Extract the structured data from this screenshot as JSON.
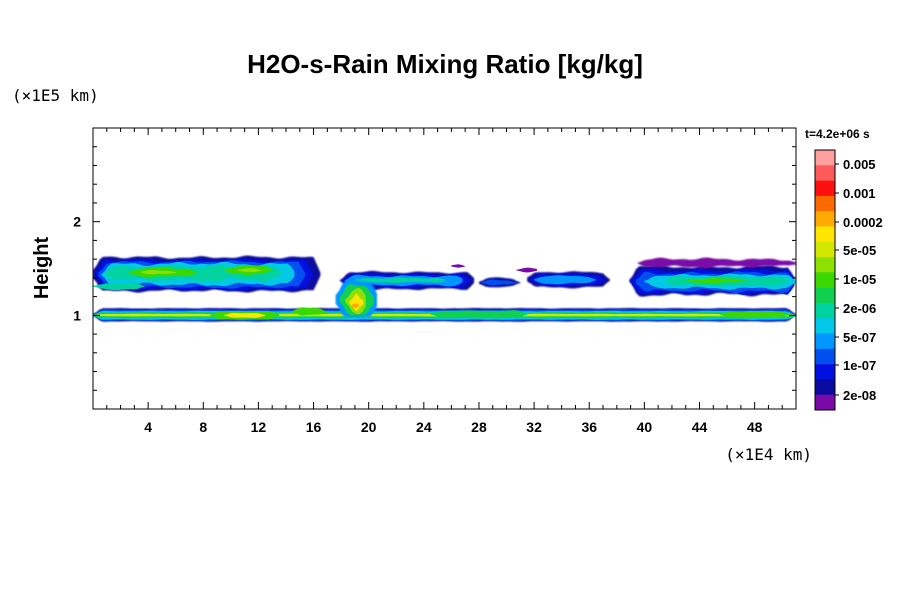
{
  "chart_data": {
    "type": "heatmap",
    "title": "H2O-s-Rain Mixing Ratio [kg/kg]",
    "xlabel": "",
    "ylabel": "Height",
    "x_unit": "(×1E4 km)",
    "y_unit": "(×1E5 km)",
    "time_label": "t=4.2e+06 s",
    "xlim": [
      0,
      51
    ],
    "ylim": [
      0,
      3
    ],
    "x_ticks": [
      4,
      8,
      12,
      16,
      20,
      24,
      28,
      32,
      36,
      40,
      44,
      48
    ],
    "y_ticks": [
      1,
      2
    ],
    "colorbar": {
      "levels": [
        "0.005",
        "0.001",
        "0.0002",
        "5e-05",
        "1e-05",
        "2e-06",
        "5e-07",
        "1e-07",
        "2e-08"
      ],
      "colors": [
        "#ff9f9f",
        "#ff5a5a",
        "#ff1010",
        "#ff6a00",
        "#ffaa00",
        "#ffe600",
        "#d2e800",
        "#8de000",
        "#3ad800",
        "#10d050",
        "#00d2a0",
        "#00c8e6",
        "#0096ff",
        "#0050f0",
        "#0010e0",
        "#0a0aa0",
        "#7a0aa8"
      ]
    },
    "bands": [
      {
        "name": "upper cloud band west",
        "x": [
          0,
          16.5
        ],
        "height": [
          1.28,
          1.62
        ],
        "peak": "1e-05"
      },
      {
        "name": "upper cloud band center",
        "x": [
          18,
          38
        ],
        "height": [
          1.3,
          1.45
        ],
        "peak": "5e-07"
      },
      {
        "name": "upper cloud band east",
        "x": [
          39,
          51
        ],
        "height": [
          1.25,
          1.55
        ],
        "peak": "1e-05"
      },
      {
        "name": "lower rain layer",
        "x": [
          0,
          51
        ],
        "height": [
          0.95,
          1.06
        ],
        "peak": "0.0002"
      },
      {
        "name": "convective column",
        "x": [
          18,
          20.5
        ],
        "height": [
          1.0,
          1.35
        ],
        "peak": "0.0002"
      }
    ]
  }
}
